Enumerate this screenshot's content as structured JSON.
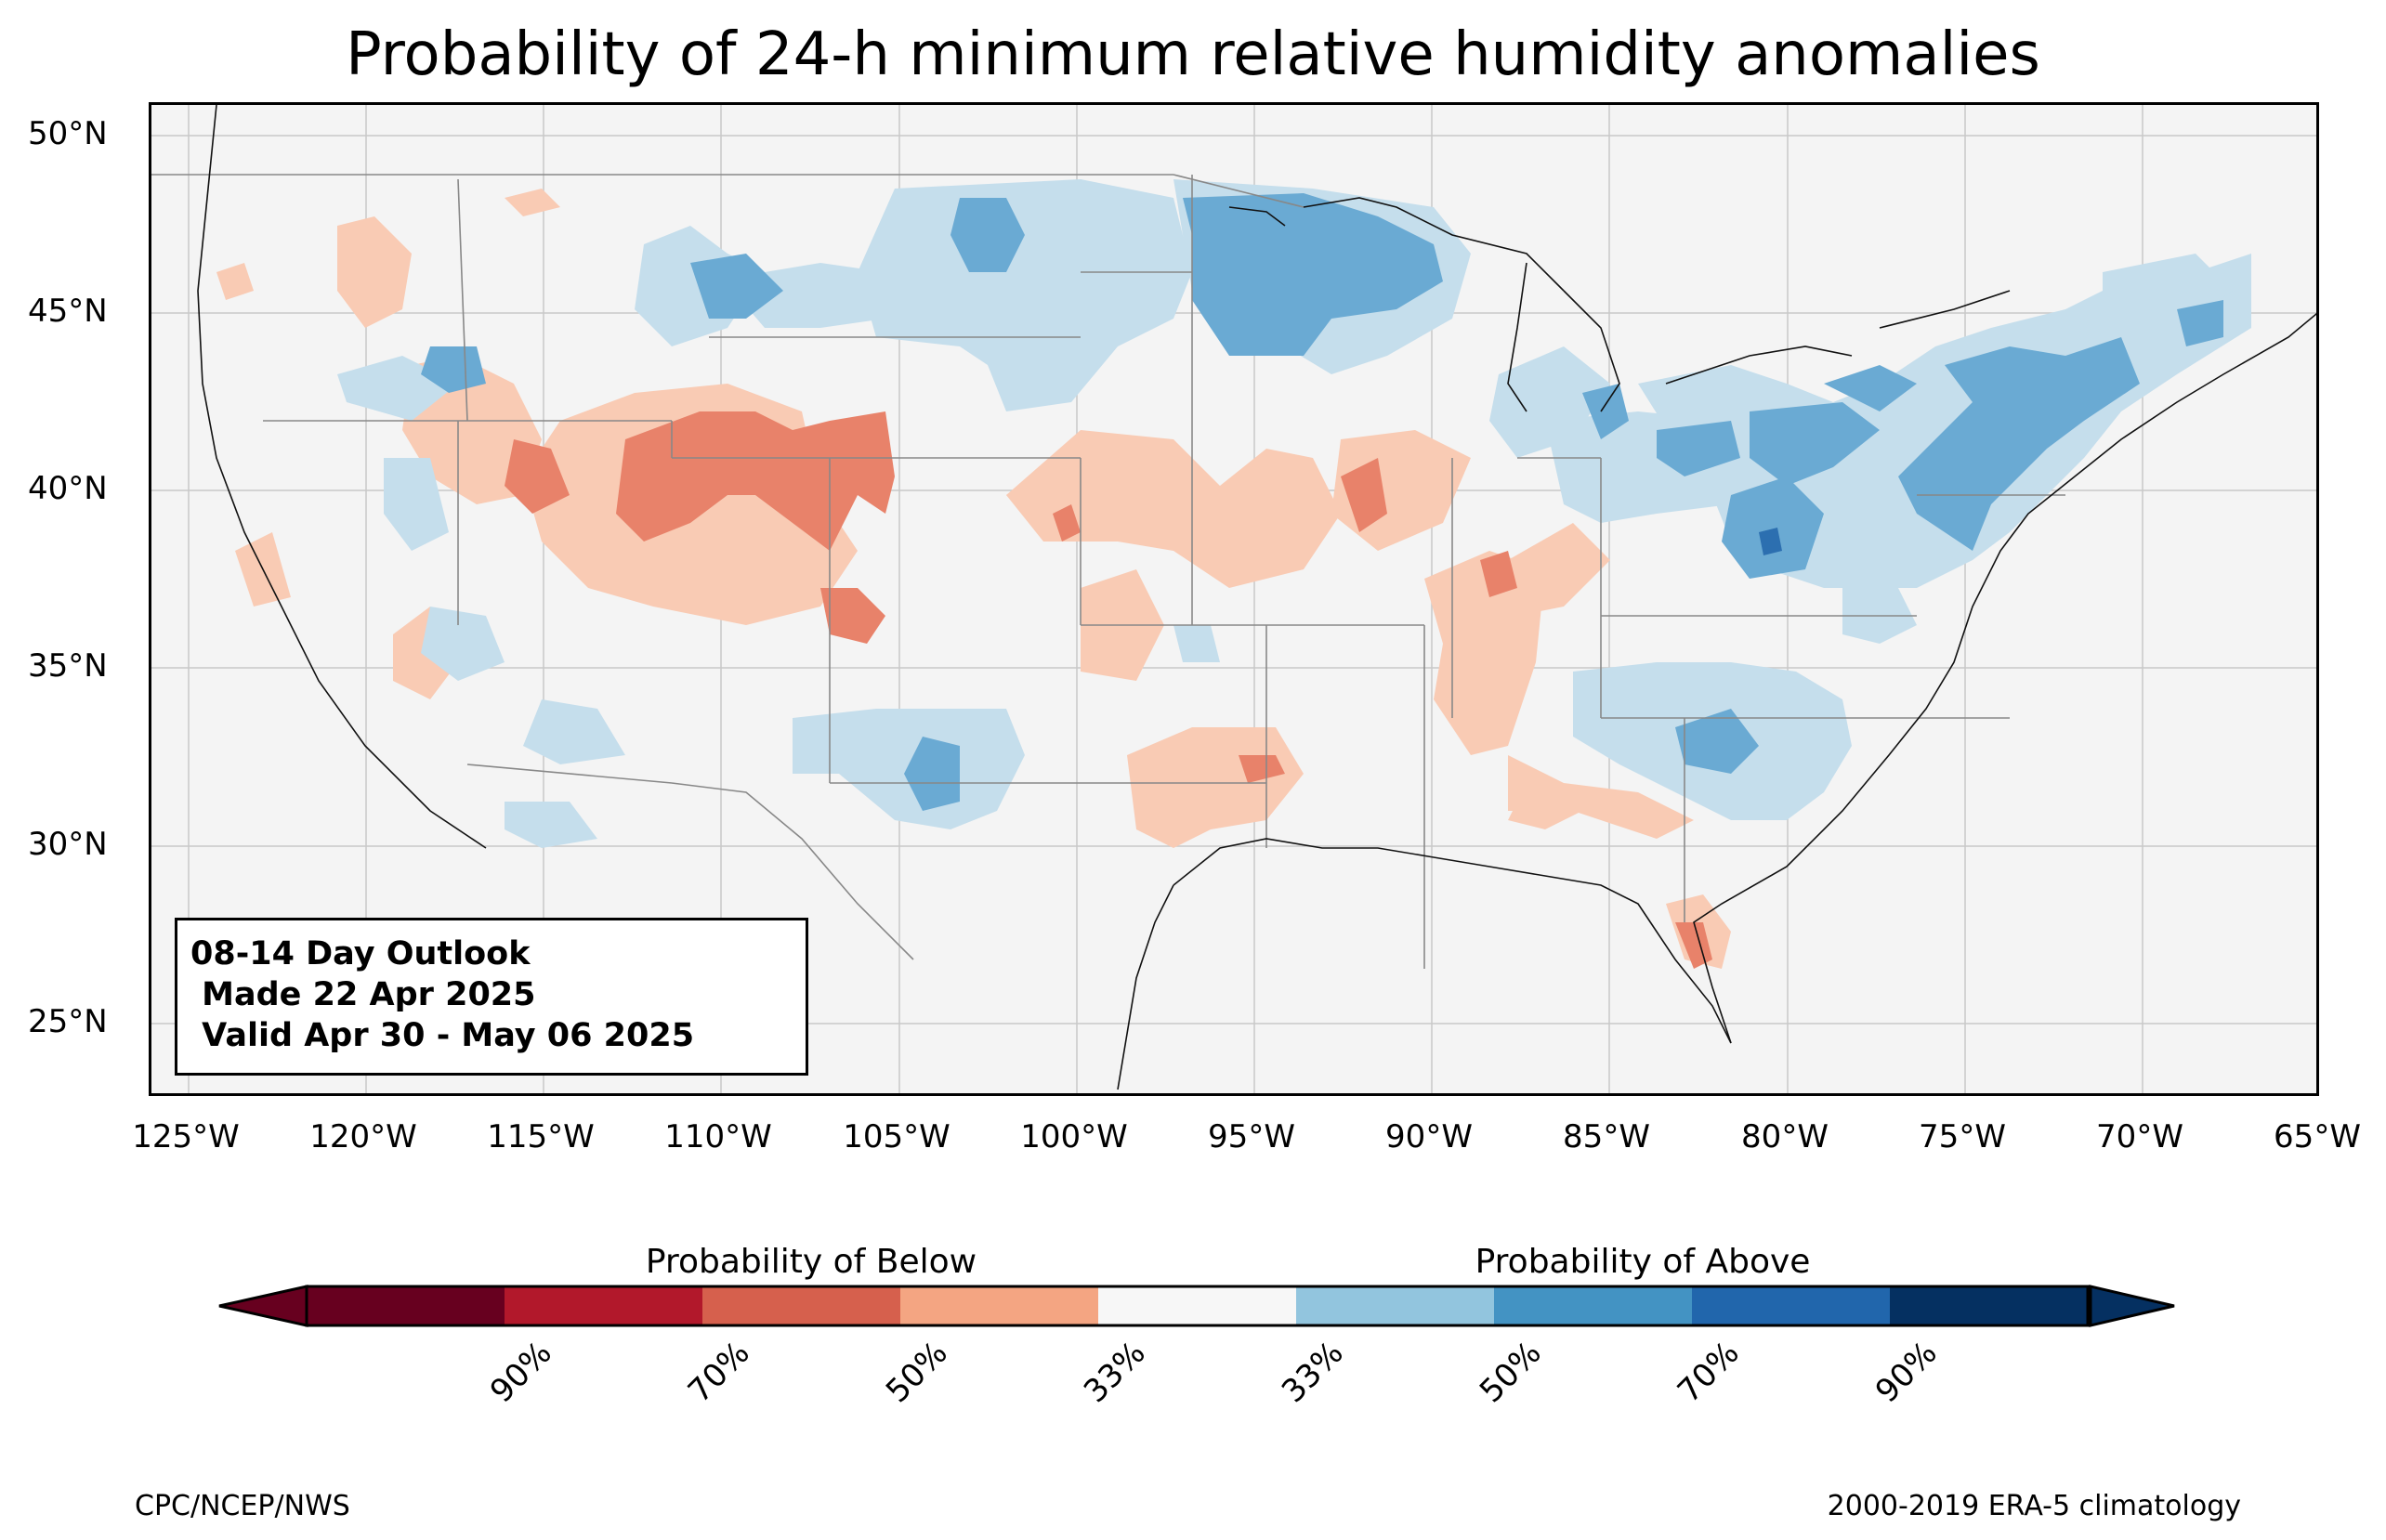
{
  "title": "Probability of 24-h minimum relative humidity anomalies",
  "lat_labels": [
    "50°N",
    "45°N",
    "40°N",
    "35°N",
    "30°N",
    "25°N"
  ],
  "lon_labels": [
    "125°W",
    "120°W",
    "115°W",
    "110°W",
    "105°W",
    "100°W",
    "95°W",
    "90°W",
    "85°W",
    "80°W",
    "75°W",
    "70°W",
    "65°W"
  ],
  "outlook": {
    "line1": "08-14 Day Outlook",
    "line2": " Made 22 Apr 2025",
    "line3": " Valid Apr 30 - May 06 2025"
  },
  "colorbar": {
    "below_label": "Probability of Below",
    "above_label": "Probability of Above",
    "ticks": [
      "90%",
      "70%",
      "50%",
      "33%",
      "33%",
      "50%",
      "70%",
      "90%"
    ],
    "colors": [
      "#67001f",
      "#b2182b",
      "#d6604d",
      "#f4a582",
      "#f7f7f7",
      "#92c5de",
      "#4393c3",
      "#2166ac",
      "#053061"
    ]
  },
  "credits": {
    "left": "CPC/NCEP/NWS",
    "right": "2000-2019 ERA-5 climatology"
  },
  "map": {
    "extent_lon": [
      -126,
      -65
    ],
    "extent_lat": [
      23,
      51
    ],
    "ocean_color": "#f4f4f4",
    "below_colors": {
      "b33": "#f9cbb4",
      "b50": "#e8826a",
      "b70": "#c04a3c"
    },
    "above_colors": {
      "a33": "#c5deec",
      "a50": "#6aaad3",
      "a70": "#2c6fb0"
    }
  }
}
